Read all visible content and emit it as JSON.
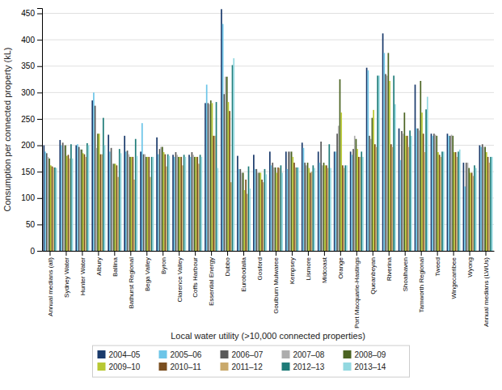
{
  "chart_data": {
    "type": "bar",
    "xlabel": "Local water utility (>10,000 connected properties)",
    "ylabel": "Consumption per connected property (kL)",
    "categories": [
      "Annual medians (all)",
      "Sydney Water",
      "Hunter Water",
      "Albury",
      "Ballina",
      "Bathurst Regional",
      "Bega Valley",
      "Byron",
      "Clarence Valley",
      "Coffs Harbour",
      "Essential Energy",
      "Dubbo",
      "Eurobodalla",
      "Gosford",
      "Goulburn Mulwaree",
      "Kempsey",
      "Lismore",
      "Midcoast",
      "Orange",
      "Port Macquarie-Hastings",
      "Queanbeyan",
      "Riverina",
      "Shoalhaven",
      "Tamworth Regional",
      "Tweed",
      "Wingecarribee",
      "Wyong",
      "Annual medians (LWUs)"
    ],
    "series": [
      {
        "name": "2004–05",
        "color": "#1a3a6b",
        "values": [
          200,
          210,
          200,
          285,
          220,
          218,
          188,
          215,
          182,
          182,
          280,
          458,
          180,
          182,
          188,
          188,
          205,
          188,
          188,
          188,
          347,
          412,
          232,
          315,
          222,
          222,
          167,
          200
        ]
      },
      {
        "name": "2005–06",
        "color": "#6cc5e8",
        "values": [
          188,
          200,
          202,
          300,
          188,
          188,
          242,
          183,
          178,
          178,
          315,
          430,
          155,
          155,
          162,
          155,
          195,
          167,
          188,
          182,
          342,
          375,
          172,
          232,
          218,
          218,
          122,
          197
        ]
      },
      {
        "name": "2006–07",
        "color": "#595959",
        "values": [
          185,
          205,
          197,
          275,
          195,
          190,
          183,
          193,
          187,
          187,
          280,
          297,
          155,
          155,
          167,
          188,
          167,
          207,
          222,
          193,
          218,
          335,
          227,
          232,
          222,
          218,
          167,
          202
        ]
      },
      {
        "name": "2007–08",
        "color": "#adadad",
        "values": [
          178,
          200,
          192,
          195,
          165,
          183,
          183,
          197,
          182,
          182,
          278,
          330,
          148,
          148,
          158,
          188,
          162,
          162,
          237,
          218,
          212,
          332,
          222,
          228,
          220,
          220,
          167,
          197
        ]
      },
      {
        "name": "2008–09",
        "color": "#4a6321",
        "values": [
          175,
          200,
          192,
          222,
          165,
          178,
          178,
          197,
          178,
          178,
          285,
          330,
          148,
          148,
          158,
          188,
          167,
          167,
          325,
          212,
          252,
          375,
          262,
          322,
          218,
          218,
          157,
          197
        ]
      },
      {
        "name": "2009–10",
        "color": "#b8c832",
        "values": [
          162,
          180,
          185,
          222,
          165,
          178,
          178,
          187,
          178,
          178,
          280,
          282,
          115,
          148,
          148,
          178,
          157,
          162,
          262,
          193,
          267,
          322,
          218,
          262,
          187,
          187,
          148,
          187
        ]
      },
      {
        "name": "2010–11",
        "color": "#7a4f20",
        "values": [
          160,
          182,
          183,
          183,
          162,
          178,
          178,
          183,
          178,
          178,
          218,
          265,
          135,
          135,
          158,
          167,
          148,
          162,
          162,
          178,
          202,
          202,
          218,
          222,
          182,
          187,
          148,
          178
        ]
      },
      {
        "name": "2011–12",
        "color": "#c9a96b",
        "values": [
          158,
          175,
          178,
          183,
          140,
          135,
          140,
          160,
          162,
          165,
          218,
          130,
          108,
          130,
          157,
          158,
          150,
          157,
          157,
          178,
          197,
          197,
          197,
          187,
          178,
          178,
          142,
          167
        ]
      },
      {
        "name": "2012–13",
        "color": "#1e7b78",
        "values": [
          158,
          202,
          204,
          252,
          193,
          212,
          178,
          183,
          182,
          182,
          282,
          352,
          160,
          155,
          162,
          158,
          162,
          202,
          162,
          188,
          332,
          332,
          228,
          268,
          188,
          188,
          162,
          178
        ]
      },
      {
        "name": "2013–14",
        "color": "#92d8e0",
        "values": [
          157,
          175,
          200,
          200,
          185,
          180,
          178,
          180,
          178,
          178,
          157,
          365,
          118,
          145,
          148,
          158,
          157,
          157,
          162,
          178,
          332,
          278,
          218,
          292,
          188,
          192,
          157,
          178
        ]
      }
    ],
    "ylim": [
      0,
      460
    ],
    "yticks": [
      0,
      50,
      100,
      150,
      200,
      250,
      300,
      350,
      400,
      450
    ],
    "grid": true,
    "legend": "bottom"
  }
}
